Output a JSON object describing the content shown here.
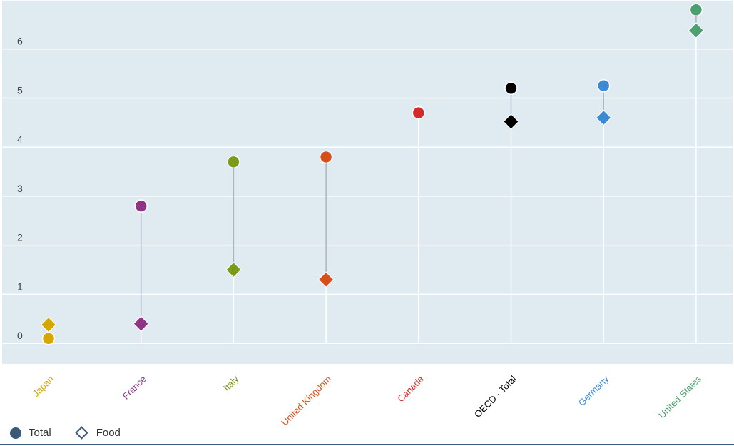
{
  "chart_data": {
    "type": "scatter",
    "categories": [
      "Japan",
      "France",
      "Italy",
      "United Kingdom",
      "Canada",
      "OECD - Total",
      "Germany",
      "United States"
    ],
    "category_colors": [
      "#d4a800",
      "#8e3585",
      "#7a9a1a",
      "#d7501c",
      "#d42a2a",
      "#000000",
      "#3a8ad6",
      "#4aa070"
    ],
    "series": [
      {
        "name": "Total",
        "marker": "circle",
        "values": [
          0.1,
          2.8,
          3.7,
          3.8,
          4.7,
          5.2,
          5.25,
          6.8
        ]
      },
      {
        "name": "Food",
        "marker": "diamond",
        "values": [
          0.38,
          0.4,
          1.5,
          1.3,
          null,
          4.52,
          4.6,
          6.38
        ]
      }
    ],
    "y_ticks": [
      0,
      1,
      2,
      3,
      4,
      5,
      6
    ],
    "ylim": [
      -0.42,
      7.0
    ],
    "grid": true,
    "legend_position": "bottom-left"
  },
  "legend": {
    "total_label": "Total",
    "food_label": "Food"
  },
  "colors": {
    "plot_background": "#e0eaf1",
    "gridline": "#ffffff",
    "connector": "#a8b6c3",
    "legend_marker": "#3a5a78"
  }
}
